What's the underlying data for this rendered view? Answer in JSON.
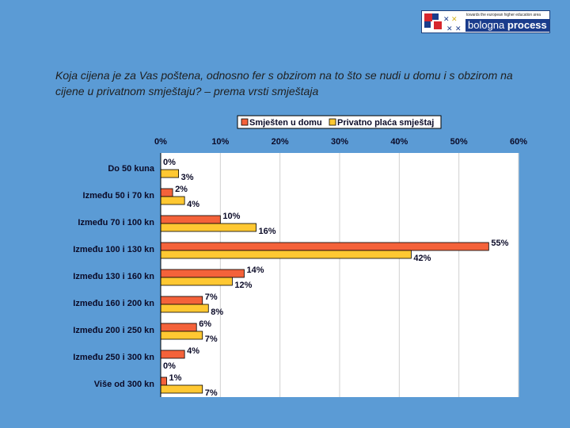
{
  "logo": {
    "tagline": "towards the european higher education area",
    "wordmark_light": "bologna",
    "wordmark_bold": "process"
  },
  "question": "Koja cijena je za Vas poštena, odnosno fer s obzirom na to što se nudi u domu i s obzirom na cijene u privatnom smještaju? – prema vrsti smještaja",
  "colors": {
    "background": "#5b9bd5",
    "plot": "#ffffff",
    "series1": "#f4623a",
    "series2": "#ffc832"
  },
  "chart_data": {
    "type": "bar",
    "orientation": "horizontal",
    "title": "",
    "legend_position": "top",
    "xlim": [
      0,
      60
    ],
    "ticks": [
      0,
      10,
      20,
      30,
      40,
      50,
      60
    ],
    "tick_labels": [
      "0%",
      "10%",
      "20%",
      "30%",
      "40%",
      "50%",
      "60%"
    ],
    "categories": [
      "Do 50 kuna",
      "Između 50 i 70 kn",
      "Između 70 i 100 kn",
      "Između 100 i 130 kn",
      "Između 130 i 160 kn",
      "Između 160  i 200 kn",
      "Između 200 i 250 kn",
      "Između 250 i 300 kn",
      "Više od 300 kn"
    ],
    "series": [
      {
        "name": "Smješten u domu",
        "color": "#f4623a",
        "values": [
          0,
          2,
          10,
          55,
          14,
          7,
          6,
          4,
          1
        ],
        "labels": [
          "0%",
          "2%",
          "10%",
          "55%",
          "14%",
          "7%",
          "6%",
          "4%",
          "1%"
        ]
      },
      {
        "name": "Privatno plaća smještaj",
        "color": "#ffc832",
        "values": [
          3,
          4,
          16,
          42,
          12,
          8,
          7,
          0,
          7
        ],
        "labels": [
          "3%",
          "4%",
          "16%",
          "42%",
          "12%",
          "8%",
          "7%",
          "0%",
          "7%"
        ]
      }
    ]
  }
}
